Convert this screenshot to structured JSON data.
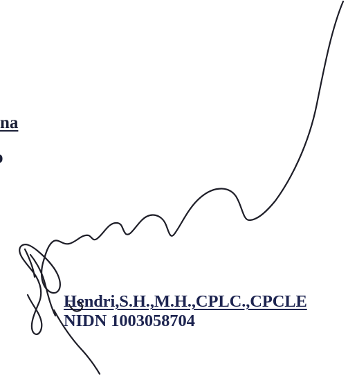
{
  "left_fragments": {
    "line_1": "na",
    "line_2": "o"
  },
  "signer": {
    "name": "Hendri,S.H.,M.H.,CPLC.,CPCLE",
    "id_line": "NIDN 1003058704"
  },
  "colors": {
    "text": "#1d2450",
    "ink": "#1e1e28",
    "background": "#ffffff"
  }
}
